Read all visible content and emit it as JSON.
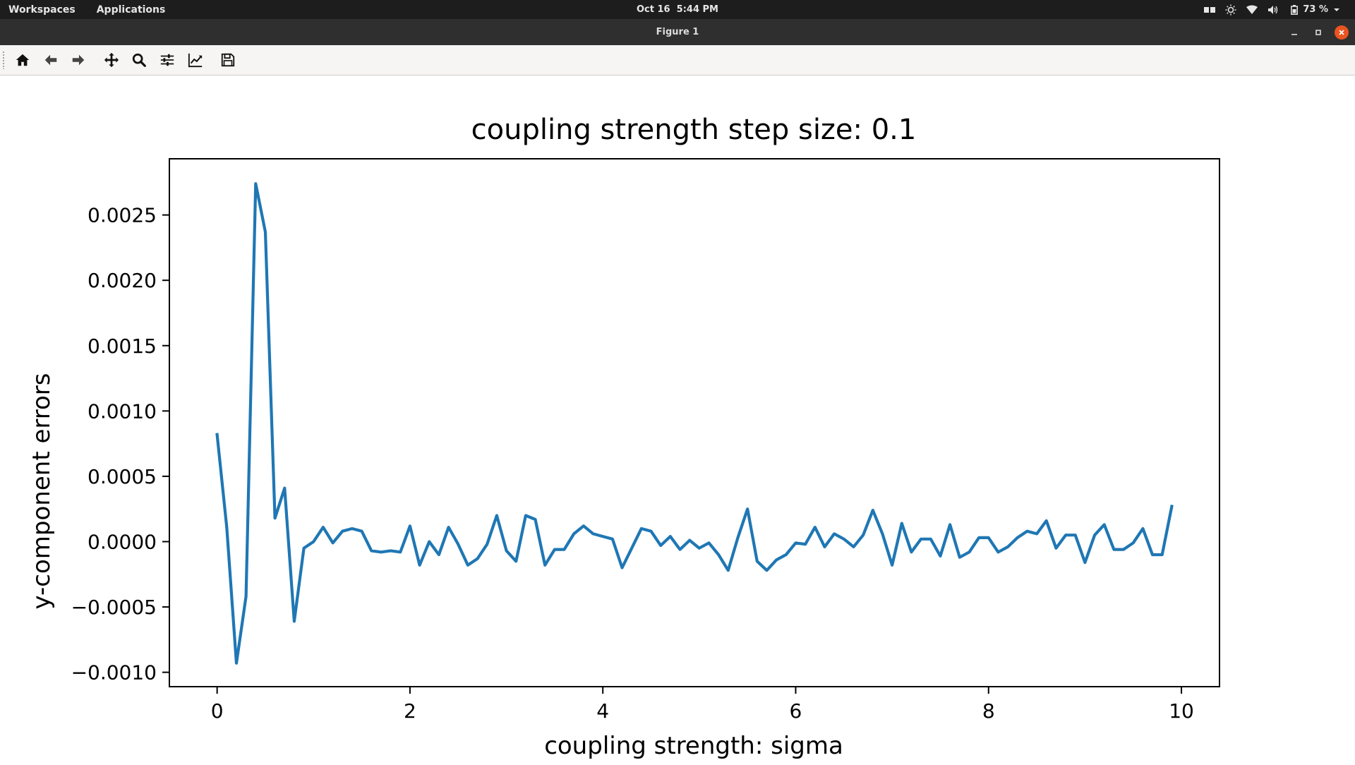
{
  "topbar": {
    "workspaces": "Workspaces",
    "applications": "Applications",
    "date": "Oct 16",
    "time": "5:44 PM",
    "battery": "73 %",
    "icons": [
      "window-switcher-icon",
      "brightness-icon",
      "wifi-icon",
      "volume-icon",
      "battery-icon",
      "chevron-down-icon"
    ]
  },
  "window": {
    "title": "Figure 1",
    "controls": [
      "minimize-icon",
      "maximize-icon",
      "close-icon"
    ],
    "close_color": "#e95420"
  },
  "toolbar": {
    "buttons": [
      "home-icon",
      "back-icon",
      "forward-icon",
      "pan-icon",
      "zoom-icon",
      "configure-subplots-icon",
      "edit-axis-icon",
      "save-icon"
    ]
  },
  "chart_data": {
    "type": "line",
    "title": "coupling strength step size: 0.1",
    "xlabel": "coupling strength: sigma",
    "ylabel": "y-component errors",
    "xlim": [
      -0.495,
      10.395
    ],
    "ylim": [
      -0.00111,
      0.00293
    ],
    "xticks": [
      0,
      2,
      4,
      6,
      8,
      10
    ],
    "xtick_labels": [
      "0",
      "2",
      "4",
      "6",
      "8",
      "10"
    ],
    "yticks": [
      -0.001,
      -0.0005,
      0.0,
      0.0005,
      0.001,
      0.0015,
      0.002,
      0.0025
    ],
    "ytick_labels": [
      "−0.0010",
      "−0.0005",
      "0.0000",
      "0.0005",
      "0.0010",
      "0.0015",
      "0.0020",
      "0.0025"
    ],
    "grid": false,
    "line_color": "#1f77b4",
    "series": [
      {
        "x_start": 0.0,
        "x_step": 0.1,
        "values": [
          0.00082,
          0.00011,
          -0.00093,
          -0.00042,
          0.00274,
          0.00237,
          0.00018,
          0.00041,
          -0.00061,
          -5e-05,
          0.0,
          0.00011,
          -1e-05,
          8e-05,
          0.0001,
          8e-05,
          -7e-05,
          -8e-05,
          -7e-05,
          -8e-05,
          0.00012,
          -0.00018,
          0.0,
          -0.0001,
          0.00011,
          -2e-05,
          -0.00018,
          -0.00013,
          -2e-05,
          0.0002,
          -7e-05,
          -0.00015,
          0.0002,
          0.00017,
          -0.00018,
          -6e-05,
          -6e-05,
          6e-05,
          0.00012,
          6e-05,
          4e-05,
          2e-05,
          -0.0002,
          -5e-05,
          0.0001,
          8e-05,
          -3e-05,
          4e-05,
          -6e-05,
          1e-05,
          -5e-05,
          -1e-05,
          -0.0001,
          -0.00022,
          3e-05,
          0.00025,
          -0.00015,
          -0.00022,
          -0.00014,
          -0.0001,
          -1e-05,
          -2e-05,
          0.00011,
          -4e-05,
          6e-05,
          2e-05,
          -4e-05,
          5e-05,
          0.00024,
          6e-05,
          -0.00018,
          0.00014,
          -8e-05,
          2e-05,
          2e-05,
          -0.00011,
          0.00013,
          -0.00012,
          -8e-05,
          3e-05,
          3e-05,
          -8e-05,
          -4e-05,
          3e-05,
          8e-05,
          6e-05,
          0.00016,
          -5e-05,
          5e-05,
          5e-05,
          -0.00016,
          5e-05,
          0.00013,
          -6e-05,
          -6e-05,
          -1e-05,
          0.0001,
          -0.0001,
          -0.0001,
          0.00027
        ]
      }
    ]
  }
}
